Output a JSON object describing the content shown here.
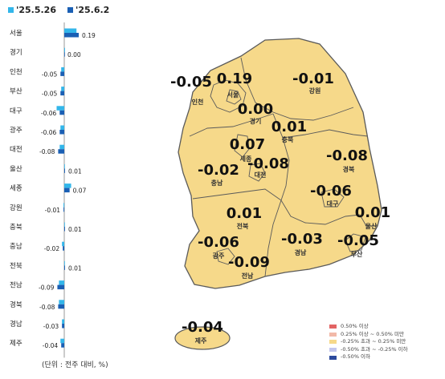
{
  "legend": {
    "series": [
      {
        "label": "'25.5.26",
        "color": "#33b6ea"
      },
      {
        "label": "'25.6.2",
        "color": "#1a5fb4"
      }
    ]
  },
  "unit_note": "(단위 : 전주 대비, %)",
  "chart_data": [
    {
      "type": "bar",
      "orientation": "horizontal",
      "categories": [
        "서울",
        "경기",
        "인천",
        "부산",
        "대구",
        "광주",
        "대전",
        "울산",
        "세종",
        "강원",
        "충북",
        "충남",
        "전북",
        "전남",
        "경북",
        "경남",
        "제주"
      ],
      "series": [
        {
          "name": "'25.5.26",
          "values": [
            0.16,
            0.01,
            -0.04,
            -0.04,
            -0.1,
            -0.05,
            -0.06,
            0.0,
            0.09,
            -0.01,
            0.0,
            -0.03,
            0.0,
            -0.07,
            -0.07,
            -0.03,
            -0.05
          ]
        },
        {
          "name": "'25.6.2",
          "values": [
            0.19,
            0.0,
            -0.05,
            -0.05,
            -0.06,
            -0.06,
            -0.08,
            0.01,
            0.07,
            -0.01,
            0.01,
            -0.02,
            0.01,
            -0.09,
            -0.08,
            -0.03,
            -0.04
          ]
        }
      ],
      "data_labels": [
        "0.19",
        "0.00",
        "-0.05",
        "-0.05",
        "-0.06",
        "-0.06",
        "-0.08",
        "0.01",
        "0.07",
        "-0.01",
        "0.01",
        "-0.02",
        "0.01",
        "-0.09",
        "-0.08",
        "-0.03",
        "-0.04"
      ],
      "colors": {
        "series1": "#33b6ea",
        "series2": "#1a5fb4"
      }
    },
    {
      "type": "map",
      "fill_color": "#f6d98a",
      "border_color": "#5a5a5a",
      "regions": [
        {
          "name": "인천",
          "value": "-0.05"
        },
        {
          "name": "서울",
          "value": "0.19"
        },
        {
          "name": "경기",
          "value": "0.00"
        },
        {
          "name": "강원",
          "value": "-0.01"
        },
        {
          "name": "충북",
          "value": "0.01"
        },
        {
          "name": "세종",
          "value": "0.07"
        },
        {
          "name": "대전",
          "value": "-0.08"
        },
        {
          "name": "충남",
          "value": "-0.02"
        },
        {
          "name": "경북",
          "value": "-0.08"
        },
        {
          "name": "대구",
          "value": "-0.06"
        },
        {
          "name": "전북",
          "value": "0.01"
        },
        {
          "name": "울산",
          "value": "0.01"
        },
        {
          "name": "광주",
          "value": "-0.06"
        },
        {
          "name": "경남",
          "value": "-0.03"
        },
        {
          "name": "부산",
          "value": "-0.05"
        },
        {
          "name": "전남",
          "value": "-0.09"
        },
        {
          "name": "제주",
          "value": "-0.04"
        }
      ],
      "legend": [
        {
          "label": "0.50% 이상",
          "color": "#e36464"
        },
        {
          "label": "0.25% 이상 ~ 0.50% 미만",
          "color": "#f2b9a8"
        },
        {
          "label": "-0.25% 초과 ~ 0.25% 미만",
          "color": "#f6d98a"
        },
        {
          "label": "-0.50% 초과 ~ -0.25% 이하",
          "color": "#c3c6ee"
        },
        {
          "label": "-0.50% 이하",
          "color": "#2c4a9e"
        }
      ]
    }
  ]
}
